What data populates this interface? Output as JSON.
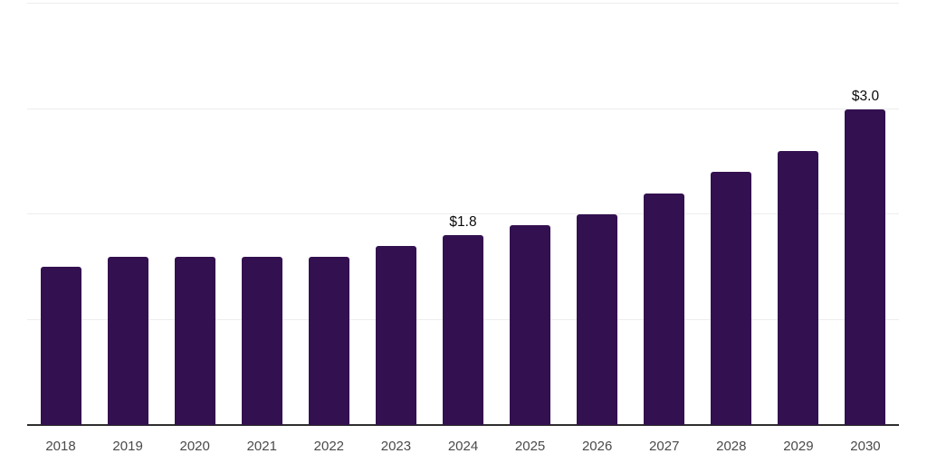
{
  "chart_data": {
    "type": "bar",
    "title": "",
    "xlabel": "",
    "ylabel": "",
    "categories": [
      "2018",
      "2019",
      "2020",
      "2021",
      "2022",
      "2023",
      "2024",
      "2025",
      "2026",
      "2027",
      "2028",
      "2029",
      "2030"
    ],
    "values": [
      1.5,
      1.6,
      1.6,
      1.6,
      1.6,
      1.7,
      1.8,
      1.9,
      2.0,
      2.2,
      2.4,
      2.6,
      3.0
    ],
    "bar_labels": [
      "",
      "",
      "",
      "",
      "",
      "",
      "$1.8",
      "",
      "",
      "",
      "",
      "",
      "$3.0"
    ],
    "ylim": [
      0,
      4
    ],
    "gridline_values": [
      1,
      2,
      3,
      4
    ],
    "grid": true,
    "legend": false,
    "y_axis_labels_visible": false,
    "colors": {
      "bar": "#331150",
      "gridline": "#ededed",
      "axis": "#2e2e2e",
      "tick_label": "#4a4a4a",
      "bar_label": "#0a0a0a",
      "background": "#ffffff"
    }
  }
}
